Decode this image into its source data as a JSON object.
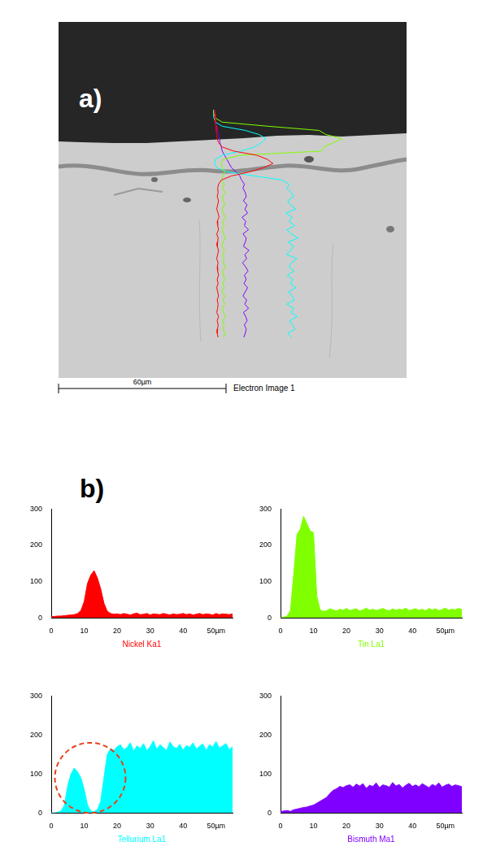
{
  "figure": {
    "panel_a": {
      "label": "a)",
      "scale_bar": "60µm",
      "caption": "Electron Image 1"
    },
    "panel_b": {
      "label": "b)"
    }
  },
  "chart_data": [
    {
      "type": "area",
      "xlabel": "Nickel Ka1",
      "color": "#ff0000",
      "x": [
        0,
        1,
        2,
        3,
        4,
        5,
        6,
        7,
        8,
        9,
        10,
        11,
        12,
        13,
        14,
        15,
        16,
        17,
        18,
        19,
        20,
        21,
        22,
        23,
        24,
        25,
        26,
        27,
        28,
        29,
        30,
        31,
        32,
        33,
        34,
        35,
        36,
        37,
        38,
        39,
        40,
        41,
        42,
        43,
        44,
        45,
        46,
        47,
        48,
        49,
        50,
        51,
        52,
        53,
        54,
        55
      ],
      "values": [
        3,
        4,
        5,
        5,
        6,
        7,
        8,
        9,
        12,
        20,
        45,
        95,
        118,
        130,
        110,
        80,
        40,
        18,
        12,
        10,
        11,
        9,
        12,
        10,
        8,
        11,
        13,
        9,
        10,
        12,
        8,
        11,
        10,
        9,
        12,
        10,
        8,
        11,
        9,
        10,
        12,
        9,
        11,
        8,
        10,
        12,
        9,
        11,
        10,
        8,
        12,
        9,
        11,
        10,
        9,
        11
      ],
      "xlim": [
        0,
        55
      ],
      "xticks": [
        0,
        10,
        20,
        30,
        40,
        {
          "value": 50,
          "label": "50µm"
        }
      ],
      "ylim": [
        0,
        300
      ],
      "yticks": [
        0,
        100,
        200,
        300
      ],
      "grid": false
    },
    {
      "type": "area",
      "xlabel": "Tin La1",
      "color": "#80ff00",
      "x": [
        0,
        1,
        2,
        3,
        4,
        5,
        6,
        7,
        8,
        9,
        10,
        11,
        12,
        13,
        14,
        15,
        16,
        17,
        18,
        19,
        20,
        21,
        22,
        23,
        24,
        25,
        26,
        27,
        28,
        29,
        30,
        31,
        32,
        33,
        34,
        35,
        36,
        37,
        38,
        39,
        40,
        41,
        42,
        43,
        44,
        45,
        46,
        47,
        48,
        49,
        50,
        51,
        52,
        53,
        54,
        55
      ],
      "values": [
        0,
        2,
        5,
        20,
        120,
        230,
        245,
        280,
        260,
        240,
        235,
        60,
        22,
        18,
        20,
        25,
        22,
        19,
        24,
        21,
        26,
        20,
        23,
        25,
        19,
        22,
        27,
        21,
        24,
        20,
        23,
        26,
        22,
        19,
        25,
        21,
        24,
        22,
        27,
        20,
        23,
        25,
        21,
        24,
        19,
        26,
        22,
        25,
        20,
        23,
        27,
        21,
        24,
        22,
        26,
        23
      ],
      "xlim": [
        0,
        55
      ],
      "xticks": [
        0,
        10,
        20,
        30,
        40,
        {
          "value": 50,
          "label": "50µm"
        }
      ],
      "ylim": [
        0,
        300
      ],
      "yticks": [
        0,
        100,
        200,
        300
      ],
      "grid": false
    },
    {
      "type": "area",
      "xlabel": "Tellurium La1",
      "color": "#00ffff",
      "x": [
        0,
        1,
        2,
        3,
        4,
        5,
        6,
        7,
        8,
        9,
        10,
        11,
        12,
        13,
        14,
        15,
        16,
        17,
        18,
        19,
        20,
        21,
        22,
        23,
        24,
        25,
        26,
        27,
        28,
        29,
        30,
        31,
        32,
        33,
        34,
        35,
        36,
        37,
        38,
        39,
        40,
        41,
        42,
        43,
        44,
        45,
        46,
        47,
        48,
        49,
        50,
        51,
        52,
        53,
        54,
        55
      ],
      "values": [
        0,
        0,
        2,
        5,
        20,
        70,
        100,
        115,
        105,
        90,
        60,
        20,
        5,
        3,
        8,
        30,
        90,
        150,
        165,
        160,
        170,
        175,
        162,
        168,
        180,
        158,
        172,
        165,
        178,
        160,
        170,
        185,
        163,
        175,
        168,
        160,
        182,
        170,
        165,
        176,
        161,
        173,
        168,
        180,
        164,
        171,
        177,
        160,
        175,
        169,
        183,
        166,
        172,
        178,
        162,
        170
      ],
      "xlim": [
        0,
        55
      ],
      "xticks": [
        0,
        10,
        20,
        30,
        40,
        {
          "value": 50,
          "label": "50µm"
        }
      ],
      "ylim": [
        0,
        300
      ],
      "yticks": [
        0,
        100,
        200,
        300
      ],
      "grid": false
    },
    {
      "type": "area",
      "xlabel": "Bismuth Ma1",
      "color": "#8000ff",
      "x": [
        0,
        1,
        2,
        3,
        4,
        5,
        6,
        7,
        8,
        9,
        10,
        11,
        12,
        13,
        14,
        15,
        16,
        17,
        18,
        19,
        20,
        21,
        22,
        23,
        24,
        25,
        26,
        27,
        28,
        29,
        30,
        31,
        32,
        33,
        34,
        35,
        36,
        37,
        38,
        39,
        40,
        41,
        42,
        43,
        44,
        45,
        46,
        47,
        48,
        49,
        50,
        51,
        52,
        53,
        54,
        55
      ],
      "values": [
        3,
        5,
        6,
        4,
        8,
        10,
        12,
        14,
        15,
        18,
        20,
        25,
        30,
        35,
        40,
        50,
        58,
        62,
        68,
        65,
        70,
        72,
        66,
        74,
        69,
        75,
        63,
        71,
        68,
        77,
        65,
        72,
        70,
        66,
        78,
        69,
        73,
        64,
        71,
        76,
        68,
        72,
        67,
        75,
        70,
        65,
        73,
        69,
        77,
        66,
        71,
        74,
        68,
        72,
        70,
        67
      ],
      "xlim": [
        0,
        55
      ],
      "xticks": [
        0,
        10,
        20,
        30,
        40,
        {
          "value": 50,
          "label": "50µm"
        }
      ],
      "ylim": [
        0,
        300
      ],
      "yticks": [
        0,
        100,
        200,
        300
      ],
      "grid": false
    }
  ]
}
